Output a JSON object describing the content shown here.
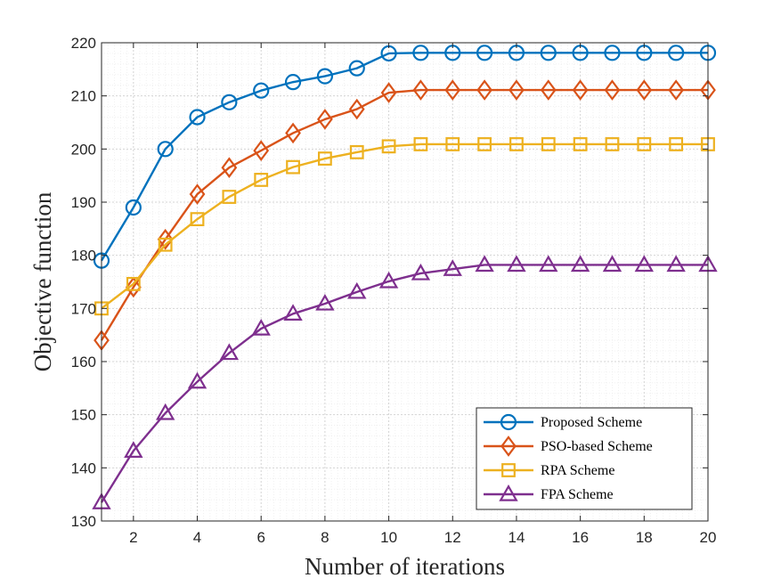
{
  "chart_data": {
    "type": "line",
    "title": "",
    "xlabel": "Number of iterations",
    "ylabel": "Objective function",
    "xlim": [
      1,
      20
    ],
    "ylim": [
      130,
      220
    ],
    "xticks": [
      2,
      4,
      6,
      8,
      10,
      12,
      14,
      16,
      18,
      20
    ],
    "yticks": [
      130,
      140,
      150,
      160,
      170,
      180,
      190,
      200,
      210,
      220
    ],
    "grid": true,
    "minor_grid": true,
    "legend_position": "bottom-right",
    "x": [
      1,
      2,
      3,
      4,
      5,
      6,
      7,
      8,
      9,
      10,
      11,
      12,
      13,
      14,
      15,
      16,
      17,
      18,
      19,
      20
    ],
    "series": [
      {
        "name": "Proposed Scheme",
        "color": "#0072BD",
        "marker": "circle",
        "values": [
          179,
          189,
          200,
          206,
          208.8,
          211,
          212.6,
          213.7,
          215.2,
          218,
          218.1,
          218.1,
          218.1,
          218.1,
          218.1,
          218.1,
          218.1,
          218.1,
          218.1,
          218.1
        ]
      },
      {
        "name": "PSO-based Scheme",
        "color": "#D95319",
        "marker": "diamond",
        "values": [
          164,
          174,
          183,
          191.5,
          196.5,
          199.7,
          203,
          205.6,
          207.5,
          210.6,
          211.1,
          211.1,
          211.1,
          211.1,
          211.1,
          211.1,
          211.1,
          211.1,
          211.1,
          211.1
        ]
      },
      {
        "name": "RPA Scheme",
        "color": "#EDB120",
        "marker": "square",
        "values": [
          170,
          174.6,
          182,
          186.8,
          191,
          194.2,
          196.6,
          198.2,
          199.4,
          200.5,
          200.9,
          200.9,
          200.9,
          200.9,
          200.9,
          200.9,
          200.9,
          200.9,
          200.9,
          200.9
        ]
      },
      {
        "name": "FPA Scheme",
        "color": "#7E2F8E",
        "marker": "triangle",
        "values": [
          133.5,
          143.2,
          150.3,
          156.2,
          161.6,
          166.2,
          169,
          170.9,
          173.1,
          175.1,
          176.6,
          177.4,
          178.2,
          178.2,
          178.2,
          178.2,
          178.2,
          178.2,
          178.2,
          178.2
        ]
      }
    ]
  }
}
